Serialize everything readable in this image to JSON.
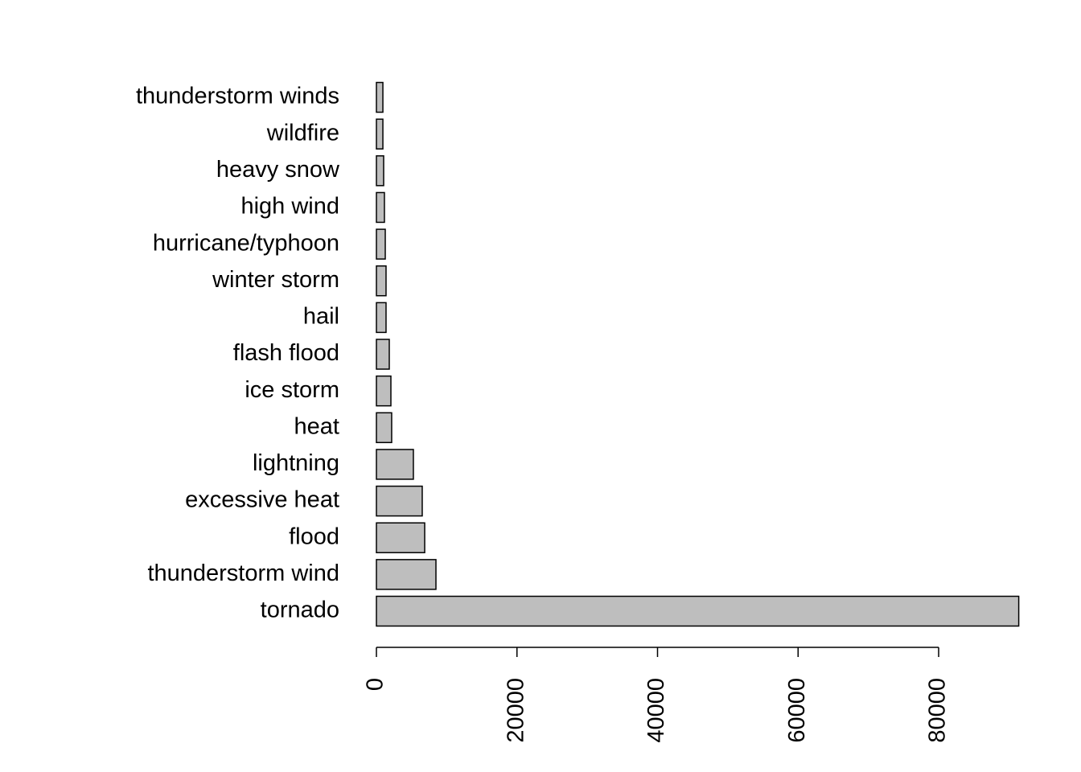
{
  "chart_data": {
    "type": "bar",
    "orientation": "horizontal",
    "categories": [
      "tornado",
      "thunderstorm wind",
      "flood",
      "excessive heat",
      "lightning",
      "heat",
      "ice storm",
      "flash flood",
      "hail",
      "winter storm",
      "hurricane/typhoon",
      "high wind",
      "heavy snow",
      "wildfire",
      "thunderstorm winds"
    ],
    "values": [
      91400,
      8470,
      6870,
      6520,
      5260,
      2170,
      2060,
      1830,
      1370,
      1370,
      1260,
      1140,
      1030,
      920,
      920
    ],
    "color": "#bebebe",
    "xlim": [
      0,
      95000
    ],
    "xticks": [
      0,
      20000,
      40000,
      60000,
      80000
    ]
  }
}
